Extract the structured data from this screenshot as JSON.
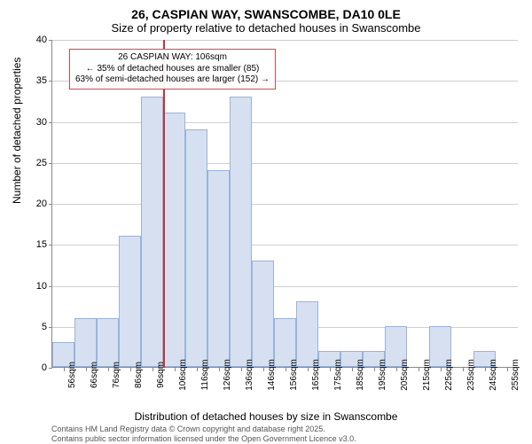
{
  "title": {
    "main": "26, CASPIAN WAY, SWANSCOMBE, DA10 0LE",
    "sub": "Size of property relative to detached houses in Swanscombe"
  },
  "chart": {
    "type": "histogram",
    "ylabel": "Number of detached properties",
    "xlabel": "Distribution of detached houses by size in Swanscombe",
    "ylim": [
      0,
      40
    ],
    "ytick_step": 5,
    "yticks": [
      0,
      5,
      10,
      15,
      20,
      25,
      30,
      35,
      40
    ],
    "categories": [
      "56sqm",
      "66sqm",
      "76sqm",
      "86sqm",
      "96sqm",
      "106sqm",
      "116sqm",
      "126sqm",
      "136sqm",
      "146sqm",
      "156sqm",
      "165sqm",
      "175sqm",
      "185sqm",
      "195sqm",
      "205sqm",
      "215sqm",
      "225sqm",
      "235sqm",
      "245sqm",
      "255sqm"
    ],
    "values": [
      3,
      6,
      6,
      16,
      33,
      31,
      29,
      24,
      33,
      13,
      6,
      8,
      2,
      2,
      2,
      5,
      0,
      5,
      0,
      2,
      0
    ],
    "bar_color": "#d6e0f0",
    "bar_border": "#9bb3d9",
    "grid_color": "#888888",
    "background_color": "#ffffff",
    "bar_width_ratio": 1.0,
    "marker": {
      "position_index": 5,
      "color": "#c83232"
    }
  },
  "annotation": {
    "line1": "26 CASPIAN WAY: 106sqm",
    "line2": "← 35% of detached houses are smaller (85)",
    "line3": "63% of semi-detached houses are larger (152) →",
    "border_color": "#d04a4a"
  },
  "attribution": {
    "line1": "Contains HM Land Registry data © Crown copyright and database right 2025.",
    "line2": "Contains public sector information licensed under the Open Government Licence v3.0."
  }
}
